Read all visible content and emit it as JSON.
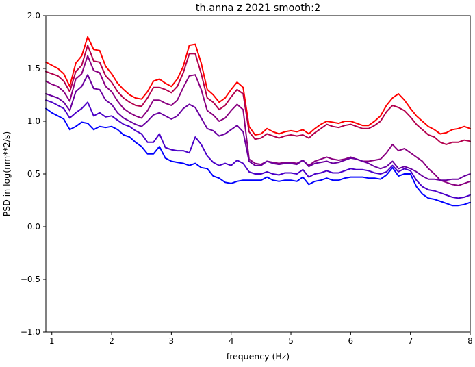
{
  "chart_data": {
    "type": "line",
    "title": "th.anna z 2021 smooth:2",
    "xlabel": "frequency (Hz)",
    "ylabel": "PSD in log(nm**2/s)",
    "xlim": [
      0.9,
      8.0
    ],
    "ylim": [
      -1.0,
      2.0
    ],
    "xticks": [
      1,
      2,
      3,
      4,
      5,
      6,
      7,
      8
    ],
    "xtick_labels": [
      "1",
      "2",
      "3",
      "4",
      "5",
      "6",
      "7",
      "8"
    ],
    "yticks": [
      -1.0,
      -0.5,
      0.0,
      0.5,
      1.0,
      1.5,
      2.0
    ],
    "ytick_labels": [
      "−1.0",
      "−0.5",
      "0.0",
      "0.5",
      "1.0",
      "1.5",
      "2.0"
    ],
    "grid": false,
    "legend": "none",
    "x": [
      0.9,
      1.0,
      1.1,
      1.2,
      1.3,
      1.4,
      1.5,
      1.6,
      1.7,
      1.8,
      1.9,
      2.0,
      2.1,
      2.2,
      2.3,
      2.4,
      2.5,
      2.6,
      2.7,
      2.8,
      2.9,
      3.0,
      3.1,
      3.2,
      3.3,
      3.4,
      3.5,
      3.6,
      3.7,
      3.8,
      3.9,
      4.0,
      4.1,
      4.2,
      4.3,
      4.4,
      4.5,
      4.6,
      4.7,
      4.8,
      4.9,
      5.0,
      5.1,
      5.2,
      5.3,
      5.4,
      5.5,
      5.6,
      5.7,
      5.8,
      5.9,
      6.0,
      6.1,
      6.2,
      6.3,
      6.4,
      6.5,
      6.6,
      6.7,
      6.8,
      6.9,
      7.0,
      7.1,
      7.2,
      7.3,
      7.4,
      7.5,
      7.6,
      7.7,
      7.8,
      7.9,
      8.0
    ],
    "series": [
      {
        "color": "#ff0000",
        "values": [
          1.56,
          1.53,
          1.5,
          1.45,
          1.33,
          1.55,
          1.62,
          1.8,
          1.68,
          1.67,
          1.52,
          1.45,
          1.36,
          1.3,
          1.25,
          1.22,
          1.21,
          1.28,
          1.38,
          1.4,
          1.36,
          1.33,
          1.4,
          1.52,
          1.72,
          1.73,
          1.55,
          1.3,
          1.25,
          1.18,
          1.22,
          1.3,
          1.37,
          1.32,
          0.95,
          0.87,
          0.88,
          0.93,
          0.9,
          0.88,
          0.9,
          0.91,
          0.9,
          0.92,
          0.88,
          0.93,
          0.97,
          1.0,
          0.99,
          0.98,
          1.0,
          1.0,
          0.98,
          0.96,
          0.96,
          1.0,
          1.05,
          1.15,
          1.22,
          1.26,
          1.2,
          1.12,
          1.05,
          1.0,
          0.95,
          0.92,
          0.88,
          0.89,
          0.92,
          0.93,
          0.95,
          0.93
        ]
      },
      {
        "color": "#b3004d",
        "values": [
          1.47,
          1.45,
          1.43,
          1.38,
          1.28,
          1.47,
          1.53,
          1.72,
          1.57,
          1.56,
          1.43,
          1.37,
          1.28,
          1.22,
          1.18,
          1.15,
          1.14,
          1.22,
          1.32,
          1.32,
          1.3,
          1.27,
          1.33,
          1.46,
          1.64,
          1.64,
          1.45,
          1.22,
          1.18,
          1.11,
          1.15,
          1.23,
          1.3,
          1.26,
          0.9,
          0.83,
          0.84,
          0.88,
          0.86,
          0.84,
          0.86,
          0.87,
          0.86,
          0.87,
          0.84,
          0.89,
          0.93,
          0.97,
          0.95,
          0.94,
          0.96,
          0.97,
          0.95,
          0.93,
          0.93,
          0.96,
          1.0,
          1.09,
          1.15,
          1.13,
          1.1,
          1.04,
          0.97,
          0.92,
          0.87,
          0.85,
          0.8,
          0.78,
          0.8,
          0.8,
          0.82,
          0.81
        ]
      },
      {
        "color": "#8a0080",
        "values": [
          1.38,
          1.35,
          1.33,
          1.28,
          1.19,
          1.4,
          1.45,
          1.62,
          1.48,
          1.46,
          1.33,
          1.28,
          1.19,
          1.12,
          1.08,
          1.05,
          1.03,
          1.1,
          1.2,
          1.2,
          1.17,
          1.15,
          1.2,
          1.32,
          1.43,
          1.44,
          1.3,
          1.1,
          1.06,
          1.0,
          1.03,
          1.1,
          1.16,
          1.11,
          0.64,
          0.6,
          0.59,
          0.62,
          0.61,
          0.6,
          0.61,
          0.61,
          0.6,
          0.63,
          0.58,
          0.62,
          0.64,
          0.66,
          0.64,
          0.63,
          0.64,
          0.66,
          0.64,
          0.62,
          0.62,
          0.63,
          0.64,
          0.7,
          0.78,
          0.72,
          0.74,
          0.7,
          0.66,
          0.62,
          0.55,
          0.5,
          0.44,
          0.42,
          0.4,
          0.39,
          0.41,
          0.43
        ]
      },
      {
        "color": "#6a00a0",
        "values": [
          1.26,
          1.24,
          1.22,
          1.18,
          1.1,
          1.28,
          1.33,
          1.44,
          1.31,
          1.3,
          1.2,
          1.16,
          1.08,
          1.03,
          1.0,
          0.97,
          0.95,
          1.0,
          1.06,
          1.08,
          1.05,
          1.02,
          1.05,
          1.12,
          1.16,
          1.13,
          1.03,
          0.93,
          0.91,
          0.86,
          0.88,
          0.92,
          0.96,
          0.9,
          0.62,
          0.58,
          0.58,
          0.62,
          0.6,
          0.59,
          0.6,
          0.6,
          0.59,
          0.63,
          0.57,
          0.6,
          0.61,
          0.62,
          0.6,
          0.61,
          0.63,
          0.65,
          0.64,
          0.62,
          0.6,
          0.57,
          0.55,
          0.57,
          0.62,
          0.55,
          0.57,
          0.55,
          0.52,
          0.48,
          0.45,
          0.45,
          0.44,
          0.44,
          0.45,
          0.45,
          0.48,
          0.5
        ]
      },
      {
        "color": "#4b00c8",
        "values": [
          1.2,
          1.18,
          1.15,
          1.12,
          1.03,
          1.08,
          1.12,
          1.18,
          1.05,
          1.08,
          1.04,
          1.05,
          1.01,
          0.97,
          0.95,
          0.91,
          0.88,
          0.8,
          0.8,
          0.88,
          0.75,
          0.73,
          0.72,
          0.72,
          0.7,
          0.85,
          0.78,
          0.67,
          0.61,
          0.58,
          0.6,
          0.58,
          0.63,
          0.6,
          0.52,
          0.5,
          0.5,
          0.52,
          0.5,
          0.49,
          0.51,
          0.51,
          0.5,
          0.54,
          0.47,
          0.5,
          0.51,
          0.53,
          0.51,
          0.51,
          0.53,
          0.55,
          0.54,
          0.54,
          0.53,
          0.51,
          0.5,
          0.52,
          0.58,
          0.52,
          0.55,
          0.53,
          0.44,
          0.38,
          0.35,
          0.34,
          0.32,
          0.3,
          0.28,
          0.27,
          0.28,
          0.3
        ]
      },
      {
        "color": "#0000ff",
        "values": [
          1.12,
          1.08,
          1.05,
          1.02,
          0.92,
          0.95,
          0.99,
          0.98,
          0.92,
          0.95,
          0.94,
          0.95,
          0.92,
          0.87,
          0.85,
          0.8,
          0.76,
          0.69,
          0.69,
          0.76,
          0.65,
          0.62,
          0.61,
          0.6,
          0.58,
          0.6,
          0.56,
          0.55,
          0.48,
          0.46,
          0.42,
          0.41,
          0.43,
          0.44,
          0.44,
          0.44,
          0.44,
          0.47,
          0.44,
          0.43,
          0.44,
          0.44,
          0.43,
          0.47,
          0.4,
          0.43,
          0.44,
          0.46,
          0.44,
          0.44,
          0.46,
          0.47,
          0.47,
          0.47,
          0.46,
          0.46,
          0.45,
          0.49,
          0.56,
          0.48,
          0.5,
          0.5,
          0.38,
          0.31,
          0.27,
          0.26,
          0.24,
          0.22,
          0.2,
          0.2,
          0.21,
          0.23
        ]
      }
    ]
  }
}
